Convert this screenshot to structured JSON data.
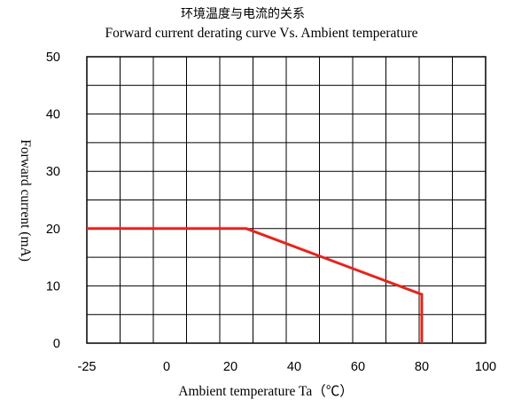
{
  "chart_data": {
    "type": "line",
    "title": "环境温度与电流的关系",
    "subtitle": "Forward current derating curve Vs. Ambient temperature",
    "xlabel": "Ambient temperature Ta（℃）",
    "ylabel": "Forward current (mA)",
    "xlim": [
      -25,
      100
    ],
    "ylim": [
      0,
      50
    ],
    "x_ticks": [
      "-25",
      "0",
      "20",
      "40",
      "60",
      "80",
      "100"
    ],
    "y_ticks": [
      "0",
      "10",
      "20",
      "30",
      "40",
      "50"
    ],
    "grid": true,
    "series": [
      {
        "color": "#e8221b",
        "points": [
          [
            -25,
            20
          ],
          [
            25,
            20
          ],
          [
            80,
            8.5
          ],
          [
            80,
            0
          ]
        ]
      }
    ]
  }
}
